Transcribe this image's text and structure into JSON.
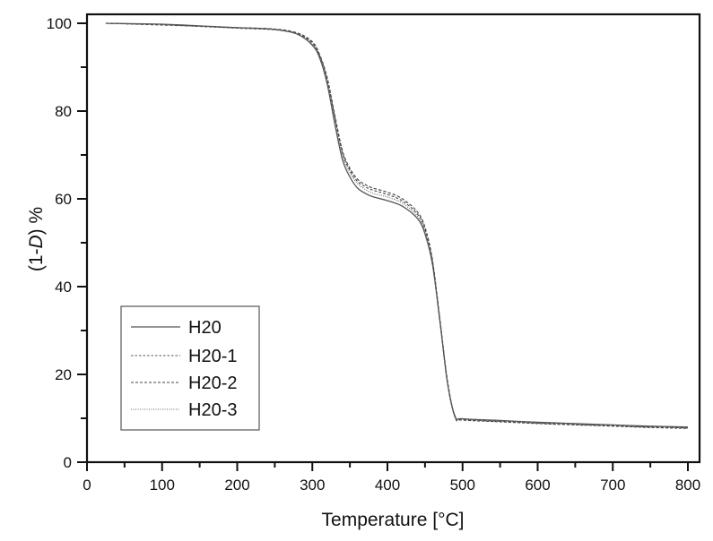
{
  "chart_data": {
    "type": "line",
    "title": "",
    "xlabel": "Temperature [°C]",
    "ylabel_parts": [
      "(1-",
      "D",
      ") %"
    ],
    "ylabel": "(1-D) %",
    "xlim": [
      0,
      850
    ],
    "ylim": [
      0,
      100
    ],
    "xticks": [
      0,
      100,
      200,
      300,
      400,
      500,
      600,
      700,
      800
    ],
    "yticks": [
      0,
      20,
      40,
      60,
      80,
      100
    ],
    "grid": false,
    "legend_position": "lower left",
    "x": [
      25,
      100,
      150,
      200,
      250,
      280,
      300,
      310,
      320,
      330,
      340,
      350,
      360,
      370,
      380,
      400,
      420,
      440,
      450,
      460,
      470,
      480,
      490,
      500,
      550,
      600,
      650,
      700,
      750,
      800
    ],
    "series": [
      {
        "name": "H20",
        "style": "solid",
        "values": [
          100,
          99.8,
          99.4,
          99.0,
          98.6,
          97.5,
          95,
          92,
          86,
          77,
          69,
          65,
          62.5,
          61.3,
          60.5,
          59.6,
          58.3,
          55.5,
          52,
          45,
          32,
          18,
          10.5,
          9.9,
          9.5,
          9.1,
          8.8,
          8.5,
          8.2,
          8.0
        ]
      },
      {
        "name": "H20-1",
        "style": "dashed",
        "values": [
          100,
          99.7,
          99.3,
          98.9,
          98.5,
          97.6,
          95.5,
          92.5,
          87,
          78.5,
          70.5,
          66.5,
          64,
          62.8,
          62,
          61,
          59.5,
          56.5,
          53,
          45.5,
          32,
          18,
          10.2,
          9.6,
          9.2,
          8.8,
          8.5,
          8.2,
          7.9,
          7.7
        ]
      },
      {
        "name": "H20-2",
        "style": "dashed",
        "values": [
          100,
          99.6,
          99.3,
          99.0,
          98.7,
          97.8,
          95.8,
          92.8,
          87.5,
          79,
          71,
          67,
          64.5,
          63.3,
          62.5,
          61.5,
          60,
          57,
          53.5,
          46,
          32.5,
          18.5,
          10.3,
          9.7,
          9.3,
          8.9,
          8.6,
          8.3,
          8.0,
          7.8
        ]
      },
      {
        "name": "H20-3",
        "style": "dotted",
        "values": [
          100,
          99.7,
          99.3,
          98.9,
          98.6,
          97.6,
          95.3,
          92.3,
          86.5,
          78,
          70,
          66,
          63.5,
          62.2,
          61.3,
          60.4,
          59,
          56,
          52.5,
          45.3,
          32,
          18,
          10.4,
          9.8,
          9.4,
          9.0,
          8.7,
          8.4,
          8.1,
          7.9
        ]
      }
    ]
  },
  "legend": {
    "items": [
      {
        "label": "H20"
      },
      {
        "label": "H20-1"
      },
      {
        "label": "H20-2"
      },
      {
        "label": "H20-3"
      }
    ]
  },
  "colors": {
    "axis": "#111111",
    "line": "#333333",
    "legend_border": "#555555"
  }
}
